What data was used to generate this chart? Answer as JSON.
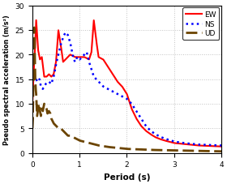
{
  "title": "",
  "xlabel": "Period (s)",
  "ylabel": "Pseudo spectral acceleration (m/s²)",
  "xlim": [
    0,
    4
  ],
  "ylim": [
    0,
    30
  ],
  "yticks": [
    0,
    5,
    10,
    15,
    20,
    25,
    30
  ],
  "xticks": [
    0,
    1,
    2,
    3,
    4
  ],
  "legend": [
    "EW",
    "NS",
    "UD"
  ],
  "line_colors": [
    "red",
    "#0000ff",
    "#6B4400"
  ],
  "background_color": "#ffffff",
  "grid_color": "#bbbbbb"
}
